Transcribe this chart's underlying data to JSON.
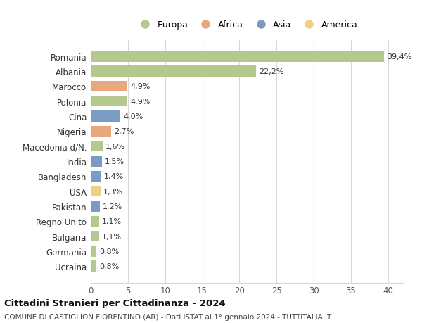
{
  "categories": [
    "Romania",
    "Albania",
    "Marocco",
    "Polonia",
    "Cina",
    "Nigeria",
    "Macedonia d/N.",
    "India",
    "Bangladesh",
    "USA",
    "Pakistan",
    "Regno Unito",
    "Bulgaria",
    "Germania",
    "Ucraina"
  ],
  "values": [
    39.4,
    22.2,
    4.9,
    4.9,
    4.0,
    2.7,
    1.6,
    1.5,
    1.4,
    1.3,
    1.2,
    1.1,
    1.1,
    0.8,
    0.8
  ],
  "labels": [
    "39,4%",
    "22,2%",
    "4,9%",
    "4,9%",
    "4,0%",
    "2,7%",
    "1,6%",
    "1,5%",
    "1,4%",
    "1,3%",
    "1,2%",
    "1,1%",
    "1,1%",
    "0,8%",
    "0,8%"
  ],
  "colors": [
    "#b5c98e",
    "#b5c98e",
    "#e8a87c",
    "#b5c98e",
    "#7b9cc2",
    "#e8a87c",
    "#b5c98e",
    "#7b9cc2",
    "#7b9cc2",
    "#f0d080",
    "#7b9cc2",
    "#b5c98e",
    "#b5c98e",
    "#b5c98e",
    "#b5c98e"
  ],
  "legend": [
    {
      "label": "Europa",
      "color": "#b5c98e"
    },
    {
      "label": "Africa",
      "color": "#e8a87c"
    },
    {
      "label": "Asia",
      "color": "#7b9cc2"
    },
    {
      "label": "America",
      "color": "#f0d080"
    }
  ],
  "xlim": [
    0,
    42
  ],
  "xticks": [
    0,
    5,
    10,
    15,
    20,
    25,
    30,
    35,
    40
  ],
  "title": "Cittadini Stranieri per Cittadinanza - 2024",
  "subtitle": "COMUNE DI CASTIGLION FIORENTINO (AR) - Dati ISTAT al 1° gennaio 2024 - TUTTITALIA.IT",
  "bg_color": "#ffffff",
  "grid_color": "#d8d8d8",
  "bar_height": 0.72,
  "label_fontsize": 8.0,
  "ytick_fontsize": 8.5,
  "xtick_fontsize": 8.5
}
